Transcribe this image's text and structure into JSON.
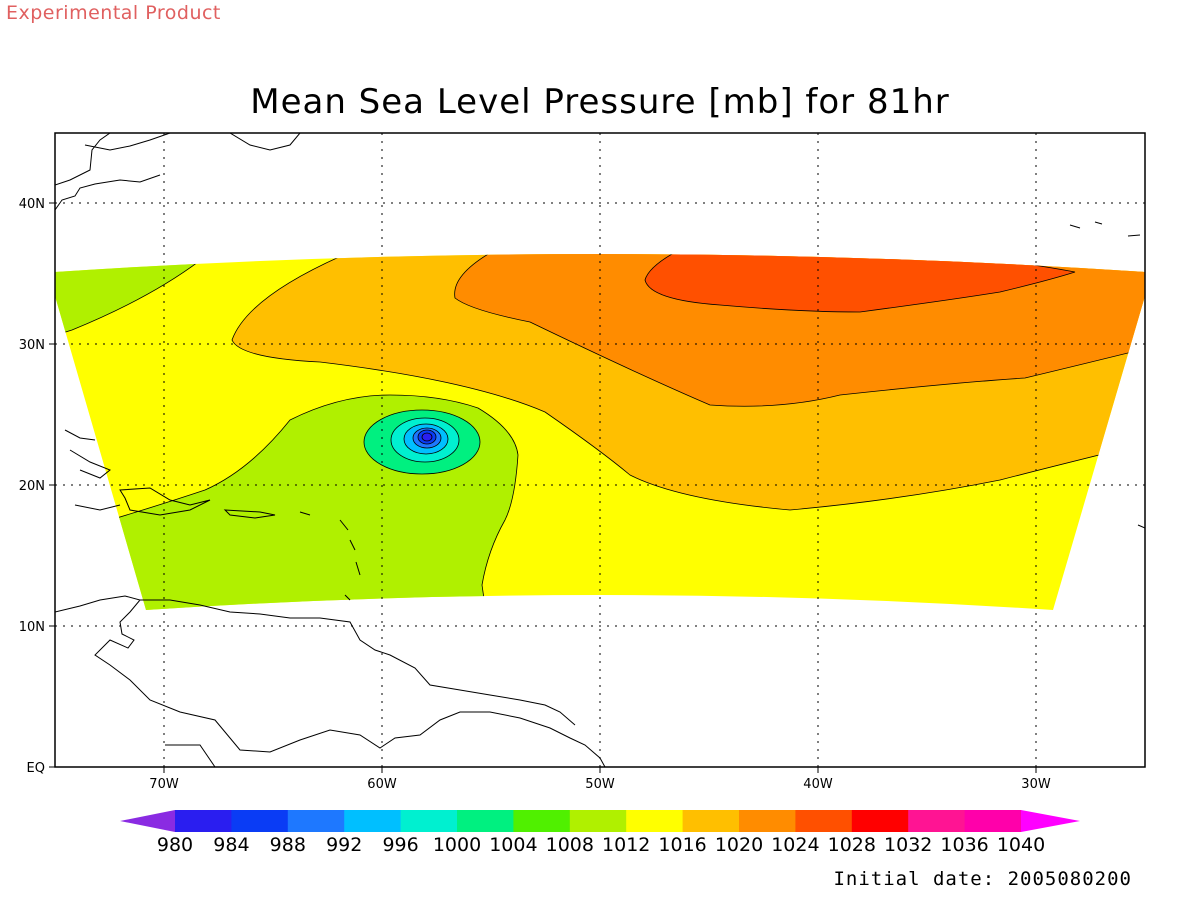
{
  "header": {
    "product_label": "Experimental Product"
  },
  "map": {
    "title": "Mean Sea Level Pressure [mb] for 81hr",
    "initial_date_text": "Initial date: 2005080200",
    "lon_labels": [
      "70W",
      "60W",
      "50W",
      "40W",
      "30W"
    ],
    "lat_labels": [
      "40N",
      "30N",
      "20N",
      "10N",
      "EQ"
    ],
    "low_center": {
      "lon": "58W",
      "lat": "23.5N",
      "pressure_band": "980-984"
    }
  },
  "colorbar": {
    "labels": [
      "980",
      "984",
      "988",
      "992",
      "996",
      "1000",
      "1004",
      "1008",
      "1012",
      "1016",
      "1020",
      "1024",
      "1028",
      "1032",
      "1036",
      "1040"
    ],
    "colors": [
      "#8a2be2",
      "#2a1ef0",
      "#0a3cf5",
      "#1e78ff",
      "#00bfff",
      "#00f0d0",
      "#00f080",
      "#50f000",
      "#b0f000",
      "#ffff00",
      "#ffbf00",
      "#ff8c00",
      "#ff5000",
      "#ff0000",
      "#ff1493",
      "#ff00aa",
      "#ff00ff"
    ]
  },
  "chart_data": {
    "type": "heatmap",
    "title": "Mean Sea Level Pressure [mb] for 81hr",
    "units": "mb",
    "x_ticks": [
      "70W",
      "60W",
      "50W",
      "40W",
      "30W"
    ],
    "y_ticks": [
      "40N",
      "30N",
      "20N",
      "10N",
      "EQ"
    ],
    "contour_levels": [
      980,
      984,
      988,
      992,
      996,
      1000,
      1004,
      1008,
      1012,
      1016,
      1020,
      1024,
      1028,
      1032,
      1036,
      1040
    ],
    "features": [
      {
        "name": "low",
        "center_lon": -58,
        "center_lat": 23.5,
        "min_pressure_band": "980-984"
      },
      {
        "name": "high",
        "center_lon": -38,
        "center_lat": 33,
        "max_pressure_band": "1024-1028"
      }
    ],
    "grid": true
  }
}
